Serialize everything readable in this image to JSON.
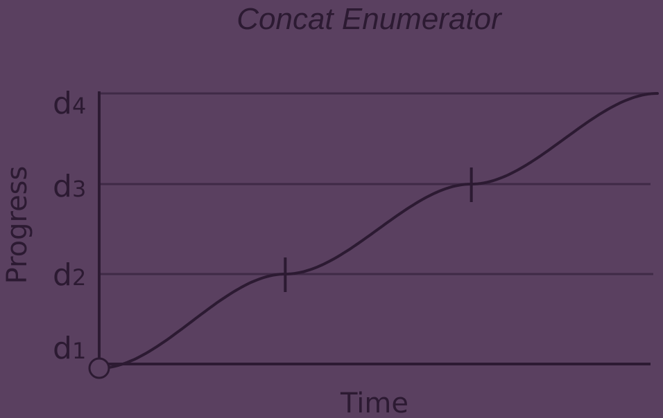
{
  "title": "Concat Enumerator",
  "colors": {
    "background": "#5a4060",
    "ink": "#2c1a32",
    "grid": "#3f2a46"
  },
  "chart_data": {
    "type": "line",
    "xlabel": "Time",
    "ylabel": "Progress",
    "y_ticks": [
      {
        "base": "d",
        "sub": "1"
      },
      {
        "base": "d",
        "sub": "2"
      },
      {
        "base": "d",
        "sub": "3"
      },
      {
        "base": "d",
        "sub": "4"
      }
    ],
    "grid": true,
    "series": [
      {
        "shape": "s-curve",
        "segments": [
          {
            "from": "d1",
            "to": "d2"
          },
          {
            "from": "d2",
            "to": "d3"
          },
          {
            "from": "d3",
            "to": "d4"
          }
        ]
      }
    ],
    "boundary_markers": [
      "d2",
      "d3"
    ],
    "origin_marker": "open-circle"
  }
}
